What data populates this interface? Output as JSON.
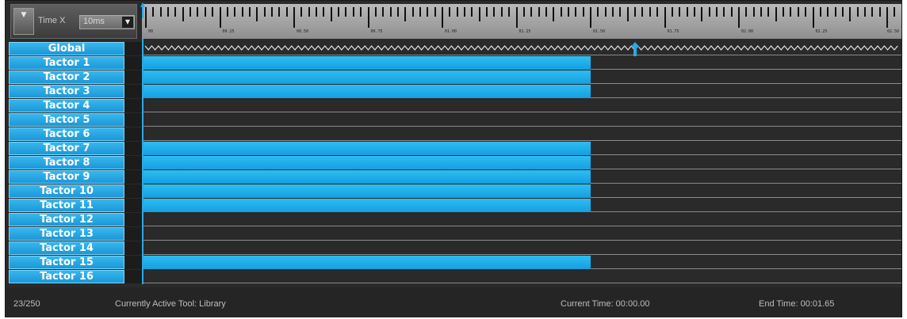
{
  "controls": {
    "collapse_icon": "triangle-down-icon",
    "time_axis_label": "Time X",
    "zoom_value": "10ms",
    "zoom_arrow_icon": "chevron-down-icon"
  },
  "ruler": {
    "labels": [
      "00",
      "00.25",
      "00.50",
      "00.75",
      "01.00",
      "01.25",
      "01.50",
      "01.75",
      "02.00",
      "02.25",
      "02.50"
    ]
  },
  "tracks": [
    {
      "label": "Global",
      "active_fraction": 0
    },
    {
      "label": "Tactor 1",
      "active_fraction": 0.59
    },
    {
      "label": "Tactor 2",
      "active_fraction": 0.59
    },
    {
      "label": "Tactor 3",
      "active_fraction": 0.59
    },
    {
      "label": "Tactor 4",
      "active_fraction": 0
    },
    {
      "label": "Tactor 5",
      "active_fraction": 0
    },
    {
      "label": "Tactor 6",
      "active_fraction": 0
    },
    {
      "label": "Tactor 7",
      "active_fraction": 0.59
    },
    {
      "label": "Tactor 8",
      "active_fraction": 0.59
    },
    {
      "label": "Tactor 9",
      "active_fraction": 0.59
    },
    {
      "label": "Tactor 10",
      "active_fraction": 0.59
    },
    {
      "label": "Tactor 11",
      "active_fraction": 0.59
    },
    {
      "label": "Tactor 12",
      "active_fraction": 0
    },
    {
      "label": "Tactor 13",
      "active_fraction": 0
    },
    {
      "label": "Tactor 14",
      "active_fraction": 0
    },
    {
      "label": "Tactor 15",
      "active_fraction": 0.59
    },
    {
      "label": "Tactor 16",
      "active_fraction": 0
    }
  ],
  "status": {
    "count": "23/250",
    "active_tool": "Currently Active Tool: Library",
    "current_time": "Current Time: 00:00.00",
    "end_time": "End Time: 00:01.65"
  },
  "colors": {
    "accent": "#1c9fe0",
    "background": "#2a2a2a"
  }
}
